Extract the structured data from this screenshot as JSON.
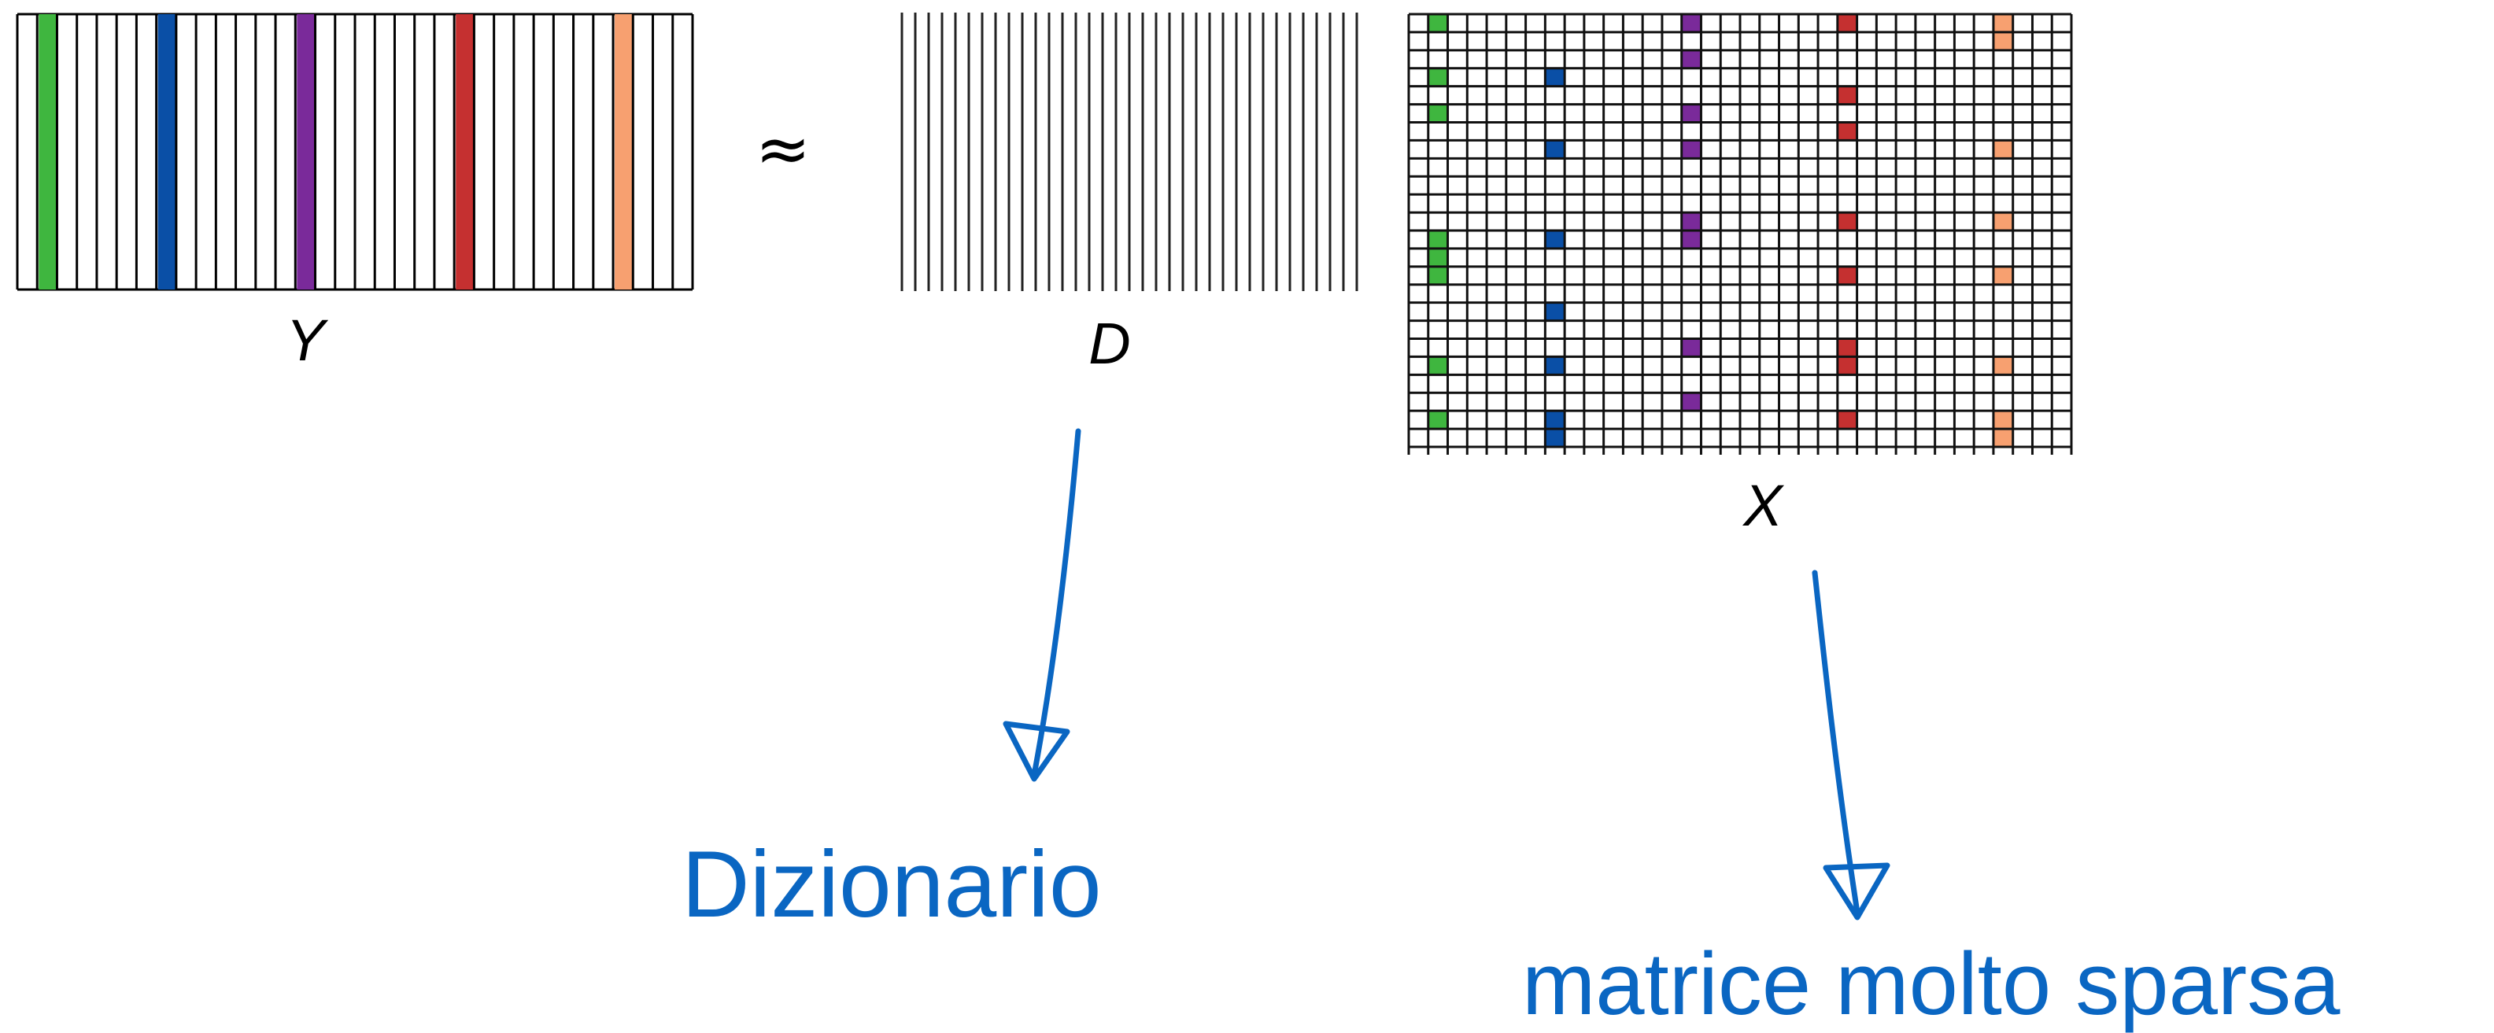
{
  "diagram": {
    "labels": {
      "y": "Y",
      "approx": "≈",
      "d": "D",
      "x": "X"
    },
    "annotations": {
      "dictionary": "Dizionario",
      "sparse": "matrice molto sparsa"
    },
    "colors": {
      "green": "#3fb63f",
      "blue": "#0a4fa6",
      "purple": "#7a2a9a",
      "red": "#c53030",
      "orange": "#f7a070",
      "annotation": "#0a66c2",
      "grid": "#000000"
    },
    "y_matrix": {
      "columns": 34,
      "colored_columns": [
        {
          "index": 1,
          "color": "green"
        },
        {
          "index": 7,
          "color": "blue"
        },
        {
          "index": 14,
          "color": "purple"
        },
        {
          "index": 22,
          "color": "red"
        },
        {
          "index": 30,
          "color": "orange"
        }
      ]
    },
    "d_matrix": {
      "columns": 34
    },
    "x_matrix": {
      "rows": 24,
      "cols": 34,
      "sparse_columns": [
        {
          "col": 1,
          "color": "green",
          "rows": [
            0,
            3,
            5,
            12,
            13,
            14,
            19,
            22
          ]
        },
        {
          "col": 7,
          "color": "blue",
          "rows": [
            3,
            7,
            12,
            16,
            19,
            22,
            23
          ]
        },
        {
          "col": 14,
          "color": "purple",
          "rows": [
            0,
            2,
            5,
            7,
            11,
            12,
            18,
            21
          ]
        },
        {
          "col": 22,
          "color": "red",
          "rows": [
            0,
            4,
            6,
            11,
            14,
            18,
            19,
            22
          ]
        },
        {
          "col": 30,
          "color": "orange",
          "rows": [
            0,
            1,
            7,
            11,
            14,
            19,
            22,
            23
          ]
        }
      ]
    }
  }
}
